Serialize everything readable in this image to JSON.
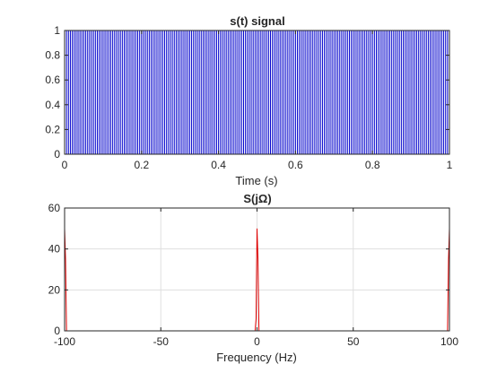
{
  "chart_data": [
    {
      "type": "line",
      "title": "s(t) signal",
      "xlabel": "Time (s)",
      "ylabel": "",
      "xlim": [
        0,
        1
      ],
      "ylim": [
        0,
        1
      ],
      "xticks": [
        0,
        0.2,
        0.4,
        0.6,
        0.8,
        1
      ],
      "xtick_labels": [
        "0",
        "0.2",
        "0.4",
        "0.6",
        "0.8",
        "1"
      ],
      "yticks": [
        0,
        0.2,
        0.4,
        0.6,
        0.8,
        1
      ],
      "ytick_labels": [
        "0",
        "0.2",
        "0.4",
        "0.6",
        "0.8",
        "1"
      ],
      "grid": false,
      "series": [
        {
          "color": "#0000cc",
          "waveform": "square",
          "frequency_hz": 100,
          "duty_cycle": 0.5,
          "low": 0,
          "high": 1
        }
      ]
    },
    {
      "type": "line",
      "title": "S(jΩ)",
      "xlabel": "Frequency (Hz)",
      "ylabel": "",
      "xlim": [
        -100,
        100
      ],
      "ylim": [
        0,
        60
      ],
      "xticks": [
        -100,
        -50,
        0,
        50,
        100
      ],
      "xtick_labels": [
        "-100",
        "-50",
        "0",
        "50",
        "100"
      ],
      "yticks": [
        0,
        20,
        40,
        60
      ],
      "ytick_labels": [
        "0",
        "20",
        "40",
        "60"
      ],
      "grid": true,
      "series": [
        {
          "color": "#dd0000",
          "x": [
            -100,
            -99.5,
            -99,
            -1,
            -0.5,
            0,
            0.5,
            1,
            99,
            99.5,
            100
          ],
          "y": [
            50,
            35,
            0,
            0,
            6,
            50,
            35,
            0,
            0,
            35,
            50
          ]
        }
      ]
    }
  ]
}
